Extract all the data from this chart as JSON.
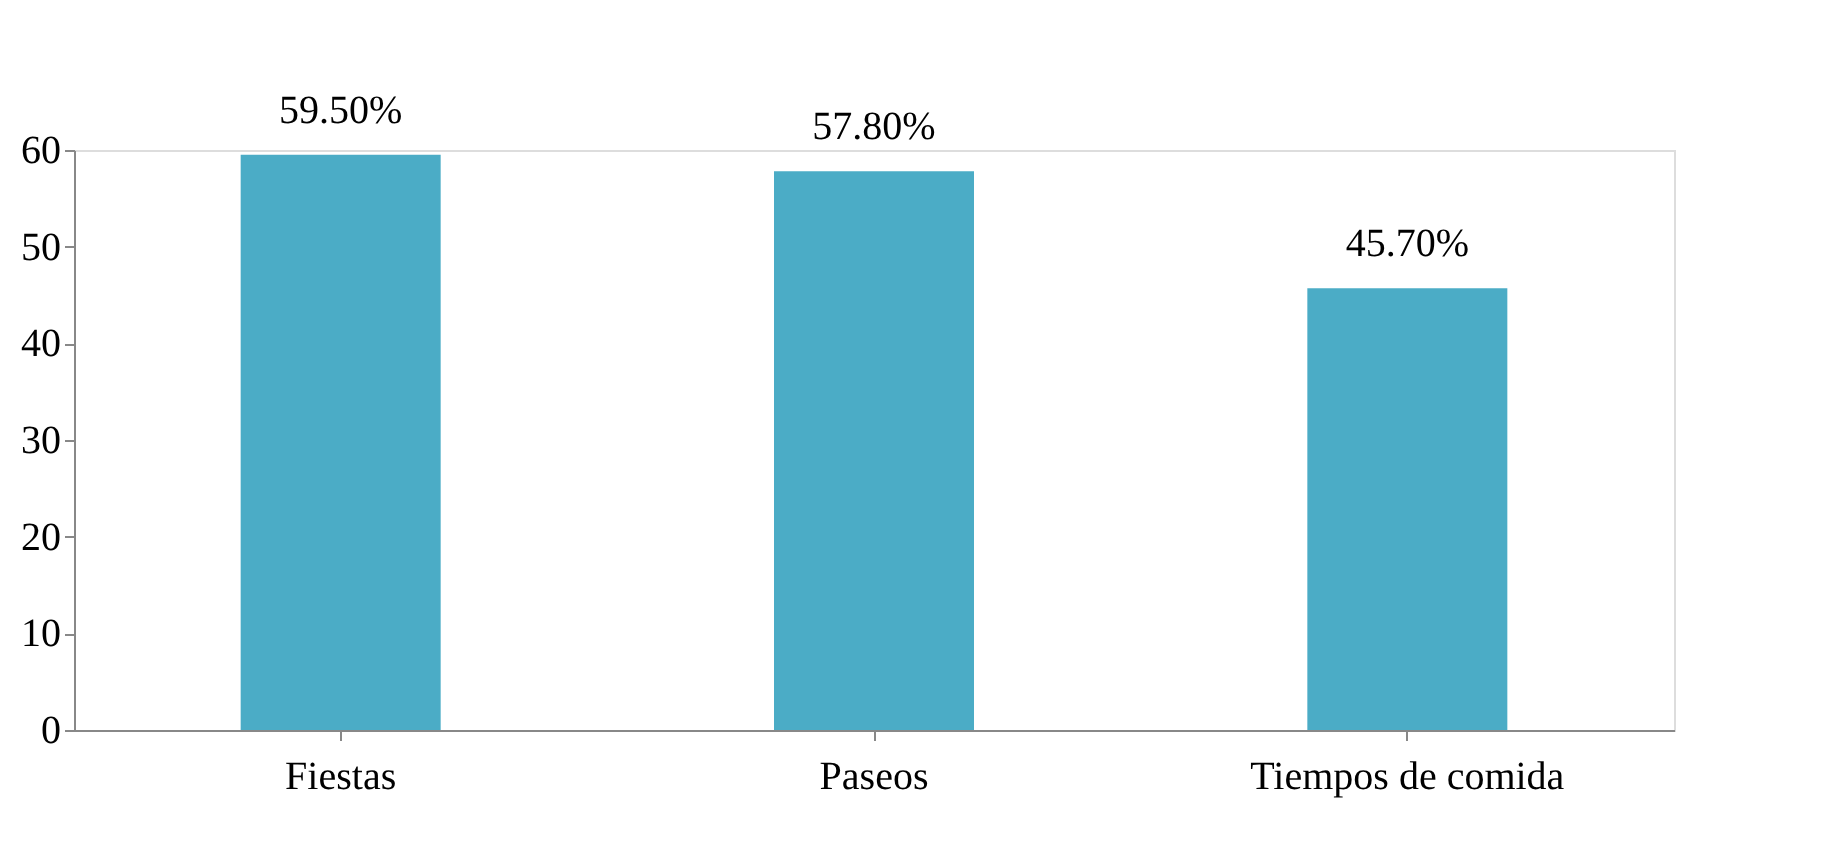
{
  "chart_data": {
    "type": "bar",
    "categories": [
      "Fiestas",
      "Paseos",
      "Tiempos de comida"
    ],
    "values": [
      59.5,
      57.8,
      45.7
    ],
    "value_labels": [
      "59.50%",
      "57.80%",
      "45.70%"
    ],
    "color": "#4bacc6",
    "ylim": [
      0,
      60
    ],
    "yticks": [
      0,
      10,
      20,
      30,
      40,
      50,
      60
    ],
    "grid": false
  }
}
